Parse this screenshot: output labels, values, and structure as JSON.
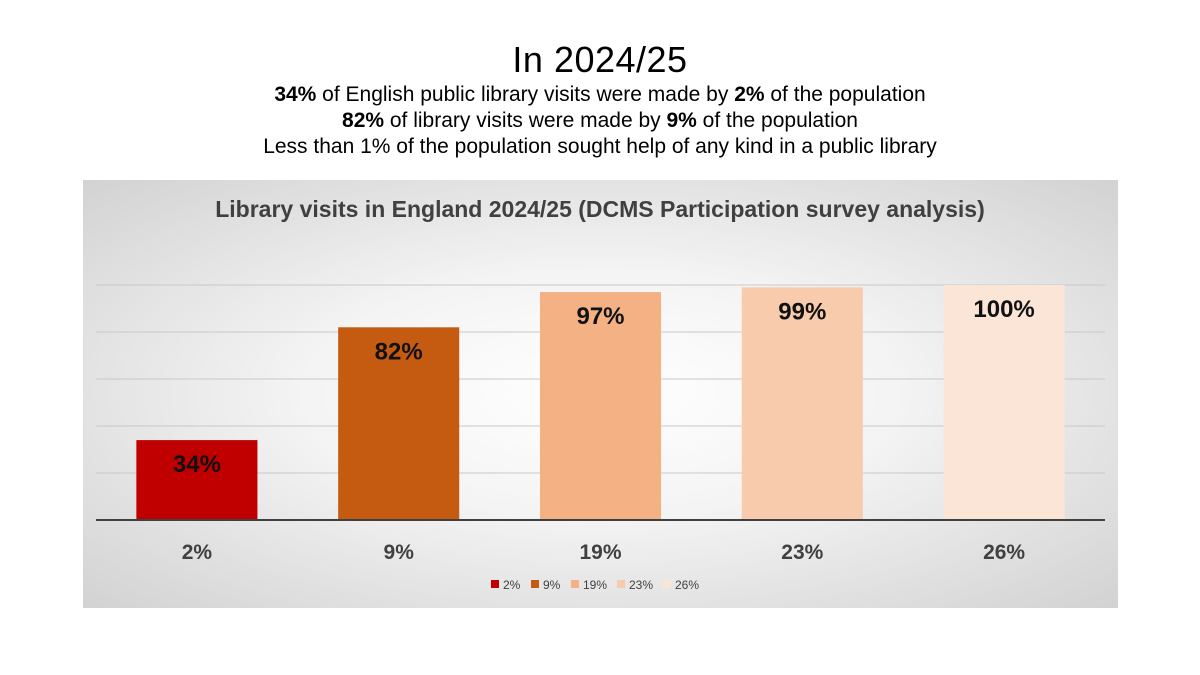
{
  "slide": {
    "title": "In  2024/25",
    "lines": [
      {
        "pre": "",
        "b1": "34%",
        "mid": " of English public library visits were made by ",
        "b2": "2%",
        "post": " of the population"
      },
      {
        "pre": "",
        "b1": "82%",
        "mid": " of library visits were made by ",
        "b2": "9%",
        "post": " of the population"
      },
      {
        "pre": "Less than 1% of the population sought help of any kind in a public library",
        "b1": "",
        "mid": "",
        "b2": "",
        "post": ""
      }
    ]
  },
  "chart_data": {
    "type": "bar",
    "title": "Library visits in England  2024/25 (DCMS Participation survey analysis)",
    "categories": [
      "2%",
      "9%",
      "19%",
      "23%",
      "26%"
    ],
    "values": [
      34,
      82,
      97,
      99,
      100
    ],
    "value_labels": [
      "34%",
      "82%",
      "97%",
      "99%",
      "100%"
    ],
    "colors": [
      "#c00000",
      "#c55a11",
      "#f4b183",
      "#f8cbad",
      "#fbe5d6"
    ],
    "legend": [
      "2%",
      "9%",
      "19%",
      "23%",
      "26%"
    ],
    "legend_position": "bottom",
    "ylim": [
      0,
      100
    ],
    "grid": true,
    "xlabel": "",
    "ylabel": ""
  }
}
